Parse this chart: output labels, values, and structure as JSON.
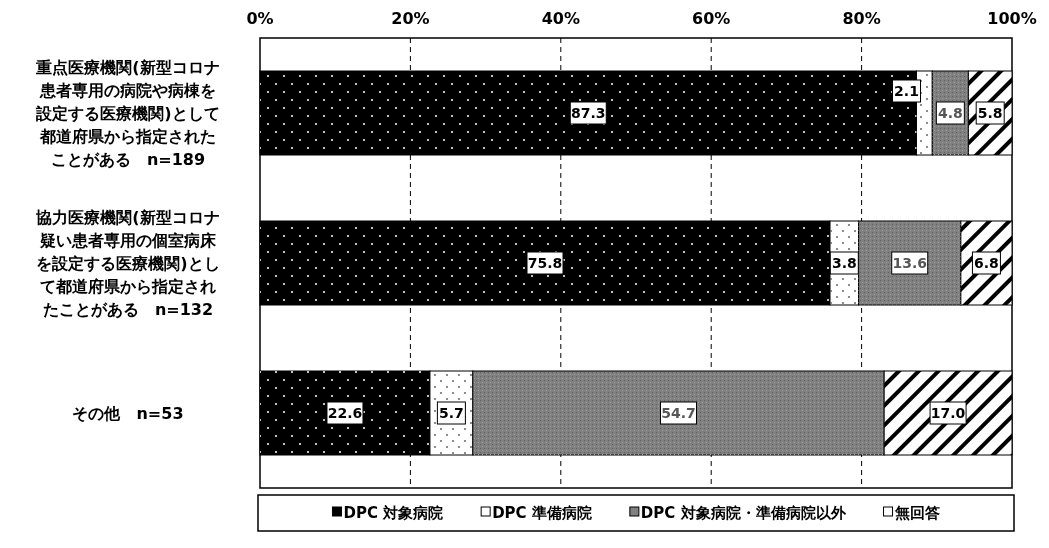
{
  "chart_data": {
    "type": "bar",
    "orientation": "horizontal",
    "stacked": true,
    "categories": [
      "重点医療機関(新型コロナ患者専用の病院や病棟を設定する医療機関)として都道府県から指定されたことがある　n=189",
      "協力医療機関(新型コロナ疑い患者専用の個室病床を設定する医療機関)として都道府県から指定されたことがある　n=132",
      "その他　n=53"
    ],
    "series": [
      {
        "name": "DPC 対象病院",
        "color": "#000000",
        "values": [
          87.3,
          75.8,
          22.6
        ],
        "value_labels": [
          "87.3",
          "75.8",
          "22.6"
        ]
      },
      {
        "name": "DPC 準備病院",
        "color": "#ffffff",
        "values": [
          2.1,
          3.8,
          5.7
        ],
        "value_labels": [
          "2.1",
          "3.8",
          "5.7"
        ]
      },
      {
        "name": "DPC 対象病院・準備病院以外",
        "color": "#808080",
        "values": [
          4.8,
          13.6,
          54.7
        ],
        "value_labels": [
          "4.8",
          "13.6",
          "54.7"
        ]
      },
      {
        "name": "無回答",
        "color": "#ffffff",
        "values": [
          5.8,
          6.8,
          17.0
        ],
        "value_labels": [
          "5.8",
          "6.8",
          "17.0"
        ]
      }
    ],
    "xlim": [
      0,
      100
    ],
    "xticks": [
      {
        "value": 0,
        "label": "0%"
      },
      {
        "value": 20,
        "label": "20%"
      },
      {
        "value": 40,
        "label": "40%"
      },
      {
        "value": 60,
        "label": "60%"
      },
      {
        "value": 80,
        "label": "80%"
      },
      {
        "value": 100,
        "label": "100%"
      }
    ],
    "grid": "x",
    "legend": "bottom"
  }
}
